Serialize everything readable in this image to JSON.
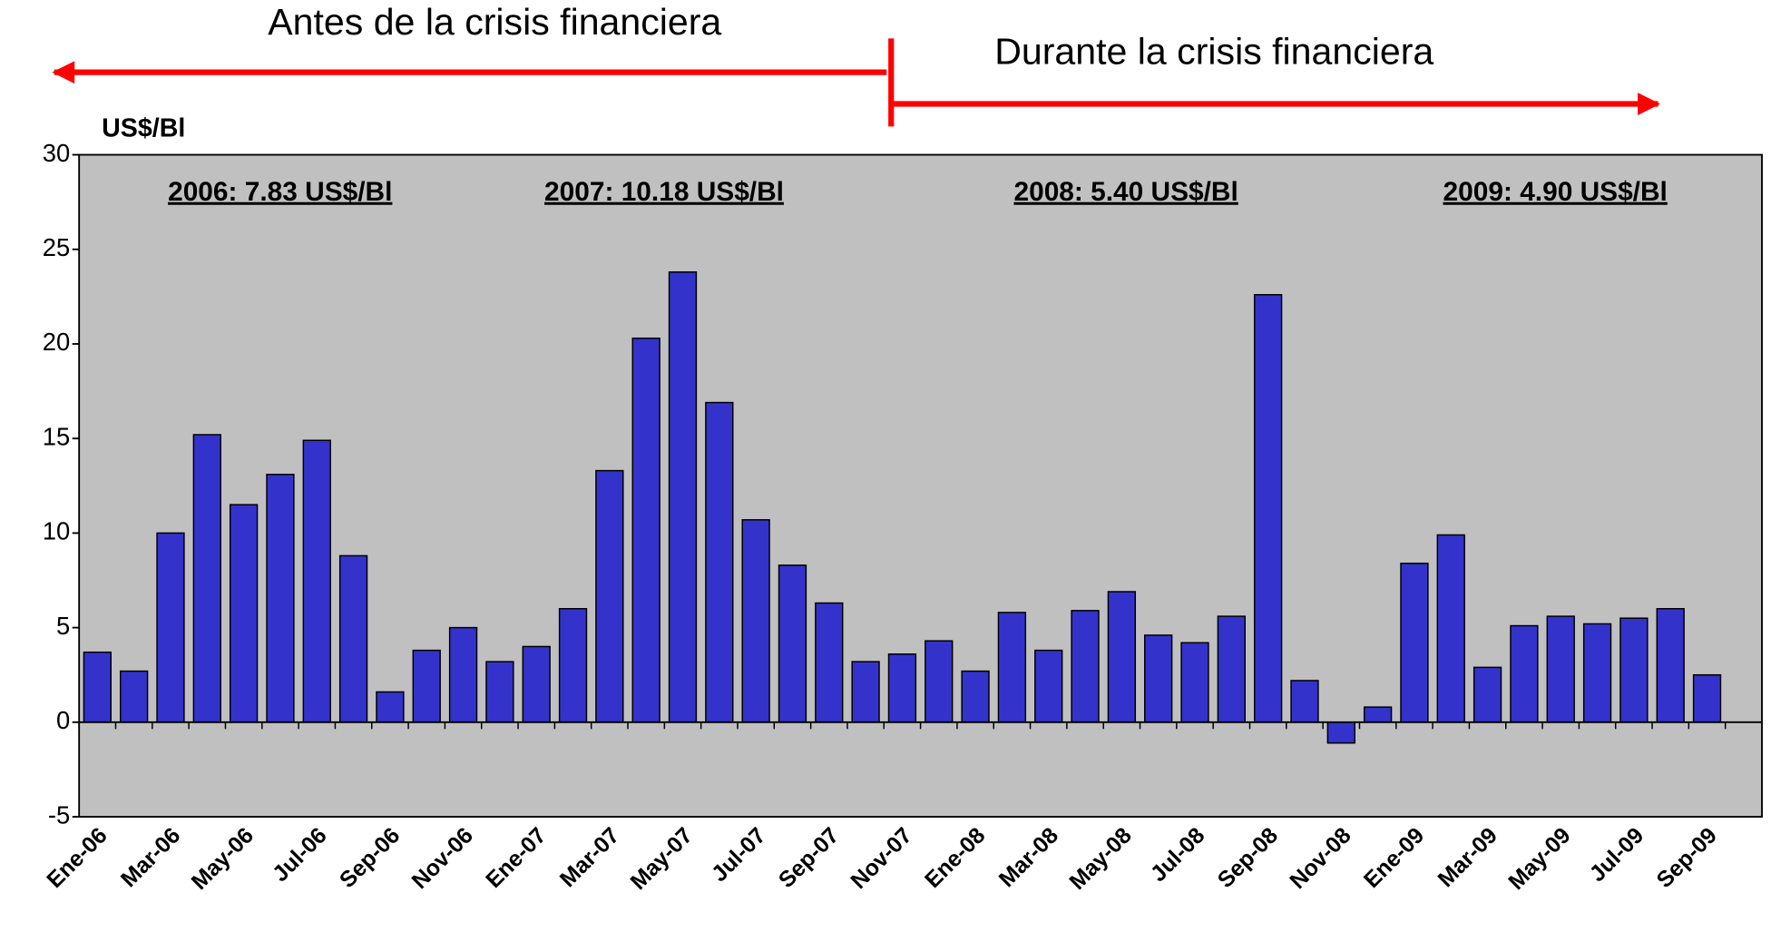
{
  "chart_data": {
    "type": "bar",
    "periods": [
      "Antes de la crisis financiera",
      "Durante la crisis financiera"
    ],
    "y_label": "US$/Bl",
    "annotations": [
      "2006: 7.83 US$/Bl",
      "2007: 10.18 US$/Bl",
      "2008: 5.40 US$/Bl",
      "2009: 4.90 US$/Bl"
    ],
    "categories": [
      "Ene-06",
      null,
      "Mar-06",
      null,
      "May-06",
      null,
      "Jul-06",
      null,
      "Sep-06",
      null,
      "Nov-06",
      null,
      "Ene-07",
      null,
      "Mar-07",
      null,
      "May-07",
      null,
      "Jul-07",
      null,
      "Sep-07",
      null,
      "Nov-07",
      null,
      "Ene-08",
      null,
      "Mar-08",
      null,
      "May-08",
      null,
      "Jul-08",
      null,
      "Sep-08",
      null,
      "Nov-08",
      null,
      "Ene-09",
      null,
      "Mar-09",
      null,
      "May-09",
      null,
      "Jul-09",
      null,
      "Sep-09",
      null
    ],
    "values": [
      3.7,
      2.7,
      10.0,
      15.2,
      11.5,
      13.1,
      14.9,
      8.8,
      1.6,
      3.8,
      5.0,
      3.2,
      4.0,
      6.0,
      13.3,
      20.3,
      23.8,
      16.9,
      10.7,
      8.3,
      6.3,
      3.2,
      3.6,
      4.3,
      2.7,
      5.8,
      3.8,
      5.9,
      6.9,
      4.6,
      4.2,
      5.6,
      22.6,
      2.2,
      -1.1,
      0.8,
      8.4,
      9.9,
      2.9,
      5.1,
      5.6,
      5.2,
      5.5,
      6.0,
      2.5,
      null
    ],
    "color": "#3333cc",
    "ylim": [
      -5,
      30
    ],
    "yticks": [
      -5,
      0,
      5,
      10,
      15,
      20,
      25,
      30
    ]
  }
}
